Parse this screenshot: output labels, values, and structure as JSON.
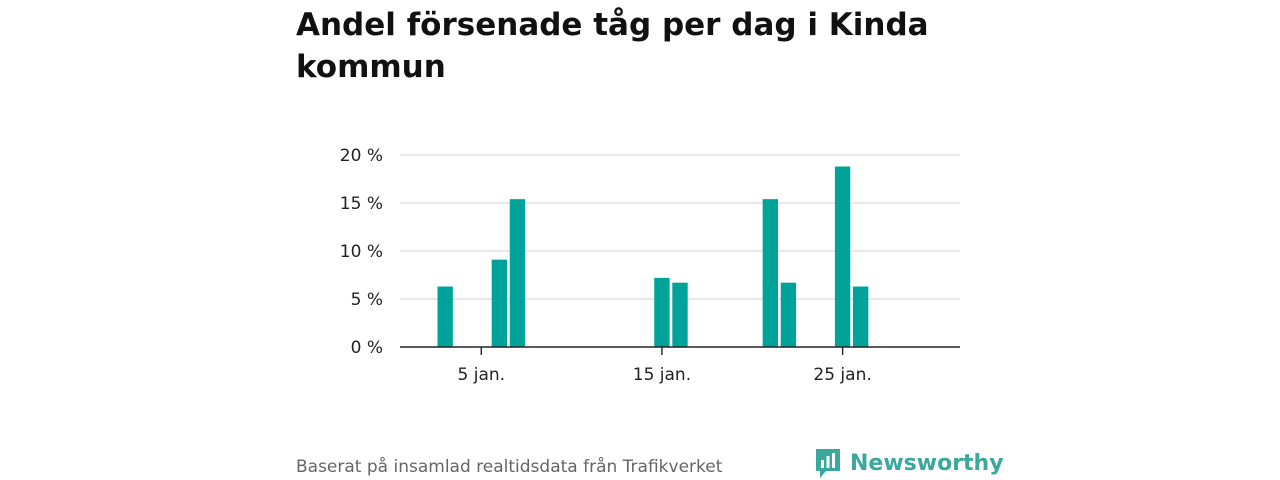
{
  "chart_data": {
    "type": "bar",
    "title": "Andel försenade tåg per dag i Kinda kommun",
    "xlabel": "",
    "ylabel": "",
    "ylim": [
      0,
      20
    ],
    "yticks": [
      {
        "value": 0,
        "label": "0 %"
      },
      {
        "value": 5,
        "label": "5 %"
      },
      {
        "value": 10,
        "label": "10 %"
      },
      {
        "value": 15,
        "label": "15 %"
      },
      {
        "value": 20,
        "label": "20 %"
      }
    ],
    "xticks": [
      {
        "value": 5,
        "label": "5 jan."
      },
      {
        "value": 15,
        "label": "15 jan."
      },
      {
        "value": 25,
        "label": "25 jan."
      }
    ],
    "x": [
      1,
      2,
      3,
      4,
      5,
      6,
      7,
      8,
      9,
      10,
      11,
      12,
      13,
      14,
      15,
      16,
      17,
      18,
      19,
      20,
      21,
      22,
      23,
      24,
      25,
      26,
      27,
      28,
      29,
      30,
      31
    ],
    "values": [
      0,
      0,
      6.3,
      0,
      0,
      9.1,
      15.4,
      0,
      0,
      0,
      0,
      0,
      0,
      0,
      7.2,
      6.7,
      0,
      0,
      0,
      0,
      15.4,
      6.7,
      0,
      0,
      18.8,
      6.3,
      0,
      0,
      0,
      0,
      0
    ],
    "grid": true,
    "color": "#00a39a"
  },
  "footer": {
    "source": "Baserat på insamlad realtidsdata från Trafikverket"
  },
  "brand": {
    "name": "Newsworthy",
    "color": "#3aa89c",
    "icon": "newsworthy-logo-icon"
  }
}
